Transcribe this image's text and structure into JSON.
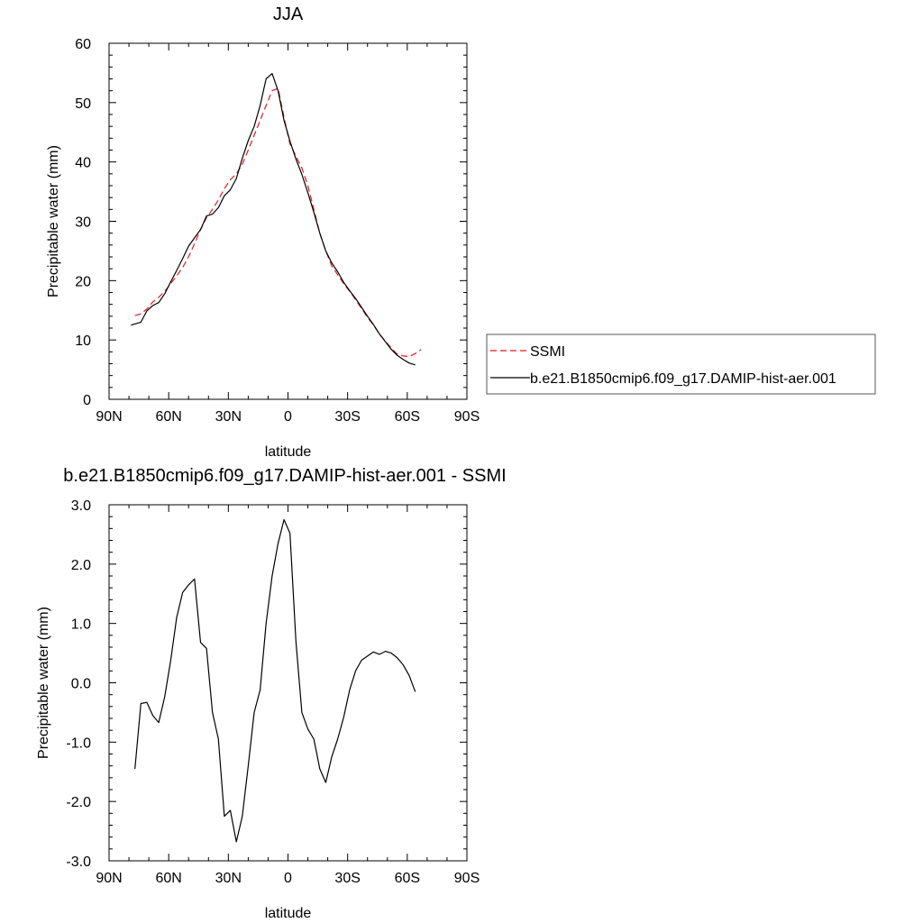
{
  "chart_data": [
    {
      "type": "line",
      "title": "JJA",
      "xlabel": "latitude",
      "ylabel": "Precipitable water (mm)",
      "xlim": [
        90,
        -90
      ],
      "ylim": [
        0,
        60
      ],
      "x_ticks": [
        {
          "value": 90,
          "label": "90N"
        },
        {
          "value": 60,
          "label": "60N"
        },
        {
          "value": 30,
          "label": "30N"
        },
        {
          "value": 0,
          "label": "0"
        },
        {
          "value": -30,
          "label": "30S"
        },
        {
          "value": -60,
          "label": "60S"
        },
        {
          "value": -90,
          "label": "90S"
        }
      ],
      "y_ticks": [
        {
          "value": 0,
          "label": "0"
        },
        {
          "value": 10,
          "label": "10"
        },
        {
          "value": 20,
          "label": "20"
        },
        {
          "value": 30,
          "label": "30"
        },
        {
          "value": 40,
          "label": "40"
        },
        {
          "value": 50,
          "label": "50"
        },
        {
          "value": 60,
          "label": "60"
        }
      ],
      "legend": {
        "placement": "right",
        "entries": [
          {
            "label": "SSMI",
            "color": "#e41a1c",
            "style": "dashed"
          },
          {
            "label": "b.e21.B1850cmip6.f09_g17.DAMIP-hist-aer.001",
            "color": "#000000",
            "style": "solid"
          }
        ]
      },
      "series": [
        {
          "name": "SSMI",
          "color": "#e41a1c",
          "dash": true,
          "x": [
            77,
            74,
            71,
            68,
            65,
            62,
            59,
            56,
            53,
            50,
            47,
            44,
            41,
            38,
            35,
            32,
            29,
            26,
            23,
            20,
            17,
            14,
            11,
            8,
            5,
            2,
            -1,
            -4,
            -7,
            -10,
            -13,
            -16,
            -19,
            -22,
            -25,
            -28,
            -31,
            -34,
            -37,
            -40,
            -43,
            -46,
            -49,
            -52,
            -55,
            -58,
            -61,
            -64,
            -67
          ],
          "y": [
            14.1,
            14.4,
            15.2,
            16.4,
            17.2,
            18.2,
            19.5,
            20.8,
            22.2,
            24.0,
            26.2,
            28.6,
            30.6,
            32.0,
            33.6,
            35.5,
            37.0,
            38.0,
            39.6,
            42.0,
            44.5,
            47.0,
            49.5,
            52.0,
            52.4,
            47.5,
            43.0,
            41.0,
            39.0,
            36.0,
            32.0,
            28.0,
            25.0,
            22.5,
            21.0,
            19.5,
            18.2,
            16.8,
            15.3,
            13.8,
            12.5,
            11.0,
            9.8,
            8.6,
            7.6,
            7.3,
            7.2,
            7.7,
            8.4
          ]
        },
        {
          "name": "b.e21.B1850cmip6.f09_g17.DAMIP-hist-aer.001",
          "color": "#000000",
          "dash": false,
          "x": [
            79,
            74,
            71,
            68,
            65,
            62,
            59,
            56,
            53,
            50,
            47,
            44,
            41,
            38,
            35,
            32,
            29,
            26,
            23,
            20,
            17,
            14,
            11,
            8,
            5,
            2,
            -1,
            -4,
            -7,
            -10,
            -13,
            -16,
            -19,
            -22,
            -25,
            -28,
            -31,
            -34,
            -37,
            -40,
            -43,
            -46,
            -49,
            -52,
            -55,
            -58,
            -61,
            -64
          ],
          "y": [
            12.5,
            13.0,
            14.9,
            15.8,
            16.3,
            17.8,
            19.8,
            21.7,
            23.7,
            25.8,
            27.2,
            28.6,
            30.9,
            31.2,
            32.3,
            34.3,
            35.3,
            37.2,
            40.6,
            43.6,
            46.0,
            49.5,
            54.0,
            54.9,
            52.0,
            47.0,
            43.5,
            40.5,
            37.9,
            34.8,
            31.5,
            28.0,
            25.0,
            23.0,
            21.5,
            19.7,
            18.3,
            17.0,
            15.5,
            14.0,
            12.6,
            11.0,
            9.7,
            8.4,
            7.4,
            6.7,
            6.1,
            5.8
          ]
        }
      ]
    },
    {
      "type": "line",
      "title": "b.e21.B1850cmip6.f09_g17.DAMIP-hist-aer.001 - SSMI",
      "xlabel": "latitude",
      "ylabel": "Precipitable water (mm)",
      "xlim": [
        90,
        -90
      ],
      "ylim": [
        -3.0,
        3.0
      ],
      "x_ticks": [
        {
          "value": 90,
          "label": "90N"
        },
        {
          "value": 60,
          "label": "60N"
        },
        {
          "value": 30,
          "label": "30N"
        },
        {
          "value": 0,
          "label": "0"
        },
        {
          "value": -30,
          "label": "30S"
        },
        {
          "value": -60,
          "label": "60S"
        },
        {
          "value": -90,
          "label": "90S"
        }
      ],
      "y_ticks": [
        {
          "value": -3.0,
          "label": "-3.0"
        },
        {
          "value": -2.0,
          "label": "-2.0"
        },
        {
          "value": -1.0,
          "label": "-1.0"
        },
        {
          "value": 0.0,
          "label": "0.0"
        },
        {
          "value": 1.0,
          "label": "1.0"
        },
        {
          "value": 2.0,
          "label": "2.0"
        },
        {
          "value": 3.0,
          "label": "3.0"
        }
      ],
      "series": [
        {
          "color": "#000000",
          "dash": false,
          "x": [
            77,
            74,
            71,
            68,
            65,
            62,
            59,
            56,
            53,
            50,
            47,
            44,
            41,
            38,
            35,
            32,
            29,
            26,
            23,
            20,
            17,
            14,
            11,
            8,
            5,
            2,
            -1,
            -4,
            -7,
            -10,
            -13,
            -16,
            -19,
            -22,
            -25,
            -28,
            -31,
            -34,
            -37,
            -40,
            -43,
            -46,
            -49,
            -52,
            -55,
            -58,
            -61,
            -64
          ],
          "y": [
            -1.45,
            -0.35,
            -0.33,
            -0.55,
            -0.67,
            -0.23,
            0.38,
            1.1,
            1.52,
            1.65,
            1.75,
            0.68,
            0.58,
            -0.5,
            -0.95,
            -2.25,
            -2.15,
            -2.68,
            -2.25,
            -1.4,
            -0.5,
            -0.12,
            1.0,
            1.8,
            2.35,
            2.75,
            2.52,
            0.7,
            -0.5,
            -0.78,
            -0.95,
            -1.45,
            -1.68,
            -1.25,
            -0.95,
            -0.58,
            -0.12,
            0.2,
            0.38,
            0.45,
            0.52,
            0.48,
            0.53,
            0.5,
            0.42,
            0.3,
            0.12,
            -0.15
          ]
        }
      ]
    }
  ]
}
